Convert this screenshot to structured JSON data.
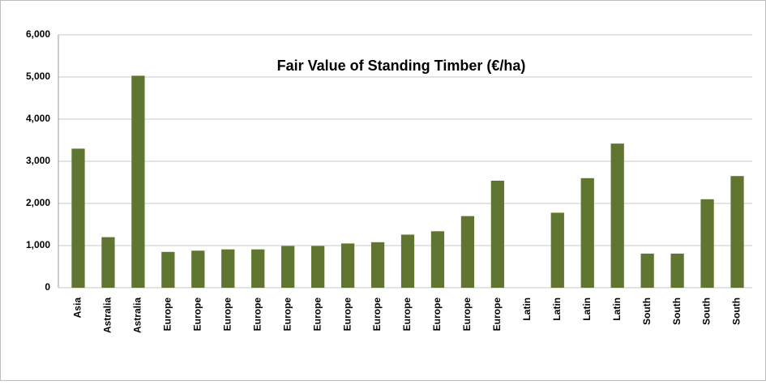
{
  "chart_data": {
    "type": "bar",
    "title": "Fair Value of Standing Timber (€/ha)",
    "categories": [
      "Asia",
      "Astralia",
      "Astralia",
      "Europe",
      "Europe",
      "Europe",
      "Europe",
      "Europe",
      "Europe",
      "Europe",
      "Europe",
      "Europe",
      "Europe",
      "Europe",
      "Europe",
      "Latin",
      "Latin",
      "Latin",
      "Latin",
      "South",
      "South",
      "South",
      "South"
    ],
    "values": [
      3300,
      1200,
      5030,
      850,
      880,
      910,
      910,
      990,
      990,
      1050,
      1080,
      1260,
      1340,
      1700,
      2540,
      null,
      1780,
      2600,
      3420,
      810,
      810,
      2100,
      2650
    ],
    "color": "#5f7530",
    "ylim": [
      0,
      6000
    ],
    "yticks": [
      0,
      {
        "value": 1000,
        "label": "1,000"
      },
      {
        "value": 2000,
        "label": "2,000"
      },
      {
        "value": 3000,
        "label": "3,000"
      },
      {
        "value": 4000,
        "label": "4,000"
      },
      {
        "value": 5000,
        "label": "5,000"
      },
      {
        "value": 6000,
        "label": "6,000"
      }
    ],
    "grid": true
  }
}
